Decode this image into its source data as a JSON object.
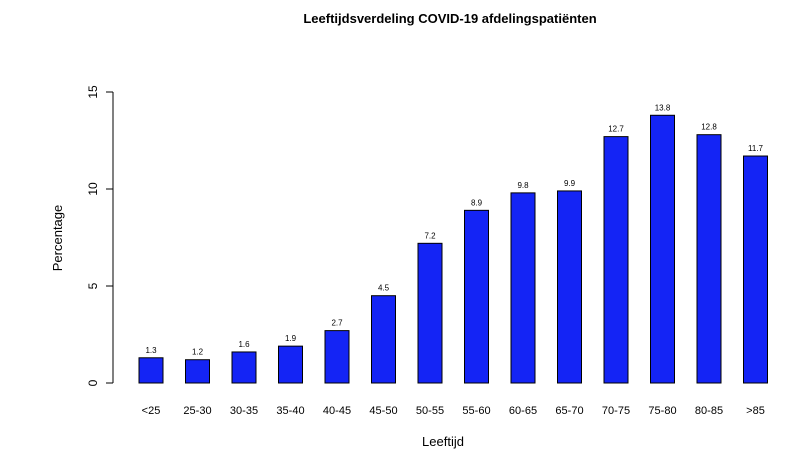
{
  "chart_data": {
    "type": "bar",
    "title": "Leeftijdsverdeling COVID-19 afdelingspatiënten",
    "xlabel": "Leeftijd",
    "ylabel": "Percentage",
    "categories": [
      "<25",
      "25-30",
      "30-35",
      "35-40",
      "40-45",
      "45-50",
      "50-55",
      "55-60",
      "60-65",
      "65-70",
      "70-75",
      "75-80",
      "80-85",
      ">85"
    ],
    "values": [
      1.3,
      1.2,
      1.6,
      1.9,
      2.7,
      4.5,
      7.2,
      8.9,
      9.8,
      9.9,
      12.7,
      13.8,
      12.8,
      11.7
    ],
    "data_labels": [
      "1.3",
      "1.2",
      "1.6",
      "1.9",
      "2.7",
      "4.5",
      "7.2",
      "8.9",
      "9.8",
      "9.9",
      "12.7",
      "13.8",
      "12.8",
      "11.7"
    ],
    "yticks": [
      0,
      5,
      10,
      15
    ],
    "ytick_labels": [
      "0",
      "5",
      "10",
      "15"
    ],
    "ylim": [
      0,
      15
    ],
    "grid": false,
    "bar_color": "#1424F5",
    "edge_color": "#000000"
  }
}
